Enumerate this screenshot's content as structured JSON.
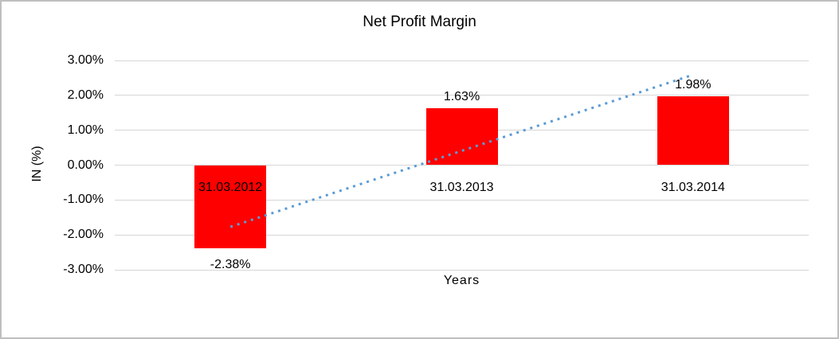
{
  "chart_data": {
    "type": "bar",
    "title": "Net Profit Margin",
    "xlabel": "Years",
    "ylabel": "IN (%)",
    "categories": [
      "31.03.2012",
      "31.03.2013",
      "31.03.2014"
    ],
    "values": [
      -2.38,
      1.63,
      1.98
    ],
    "data_labels": [
      "-2.38%",
      "1.63%",
      "1.98%"
    ],
    "yticks": [
      "3.00%",
      "2.00%",
      "1.00%",
      "0.00%",
      "-1.00%",
      "-2.00%",
      "-3.00%"
    ],
    "ytick_step": 1,
    "ylim": [
      -3,
      3
    ],
    "grid": true,
    "legend": false,
    "bar_color": "#FF0000",
    "trendline": {
      "type": "linear",
      "style": "dotted",
      "color": "#5B9BD5"
    }
  }
}
